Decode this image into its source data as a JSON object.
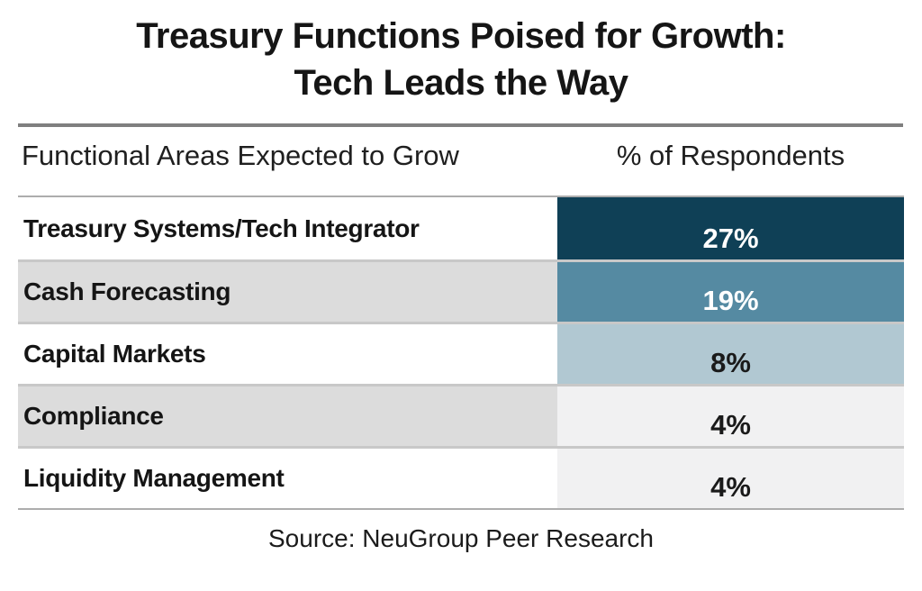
{
  "title": {
    "line1": "Treasury Functions Poised for Growth:",
    "line2": "Tech Leads the Way"
  },
  "table_header": {
    "functional_areas": "Functional Areas Expected to Grow",
    "respondents": "% of Respondents"
  },
  "source": {
    "text": "Source: NeuGroup Peer Research"
  },
  "colors": {
    "divider": "#7f7f7f",
    "table_border": "#adadad",
    "row_separator": "#c8c8c8",
    "label_alt_bg": "#dcdcdc",
    "dark_teal": "#0f4056",
    "medium_blue": "#558aa2",
    "light_blue": "#b1c8d2",
    "light_gray_cell": "#f1f1f2"
  },
  "chart_data": {
    "type": "table",
    "title": "Treasury Functions Poised for Growth: Tech Leads the Way",
    "columns": [
      "Functional Areas Expected to Grow",
      "% of Respondents"
    ],
    "categories": [
      "Treasury Systems/Tech Integrator",
      "Cash Forecasting",
      "Capital Markets",
      "Compliance",
      "Liquidity Management"
    ],
    "values": [
      27,
      19,
      8,
      4,
      4
    ],
    "source": "Source: NeuGroup Peer Research",
    "rows": [
      {
        "category": "Treasury Systems/Tech Integrator",
        "value": 27,
        "value_label": "27%",
        "label_bg": "#ffffff",
        "cell_bg": "#0f4056",
        "value_text_color": "#ffffff"
      },
      {
        "category": "Cash Forecasting",
        "value": 19,
        "value_label": "19%",
        "label_bg": "#dcdcdc",
        "cell_bg": "#558aa2",
        "value_text_color": "#ffffff"
      },
      {
        "category": "Capital Markets",
        "value": 8,
        "value_label": "8%",
        "label_bg": "#ffffff",
        "cell_bg": "#b1c8d2",
        "value_text_color": "#1a1a1a"
      },
      {
        "category": "Compliance",
        "value": 4,
        "value_label": "4%",
        "label_bg": "#dcdcdc",
        "cell_bg": "#f1f1f2",
        "value_text_color": "#1a1a1a"
      },
      {
        "category": "Liquidity Management",
        "value": 4,
        "value_label": "4%",
        "label_bg": "#ffffff",
        "cell_bg": "#f1f1f2",
        "value_text_color": "#1a1a1a"
      }
    ]
  }
}
